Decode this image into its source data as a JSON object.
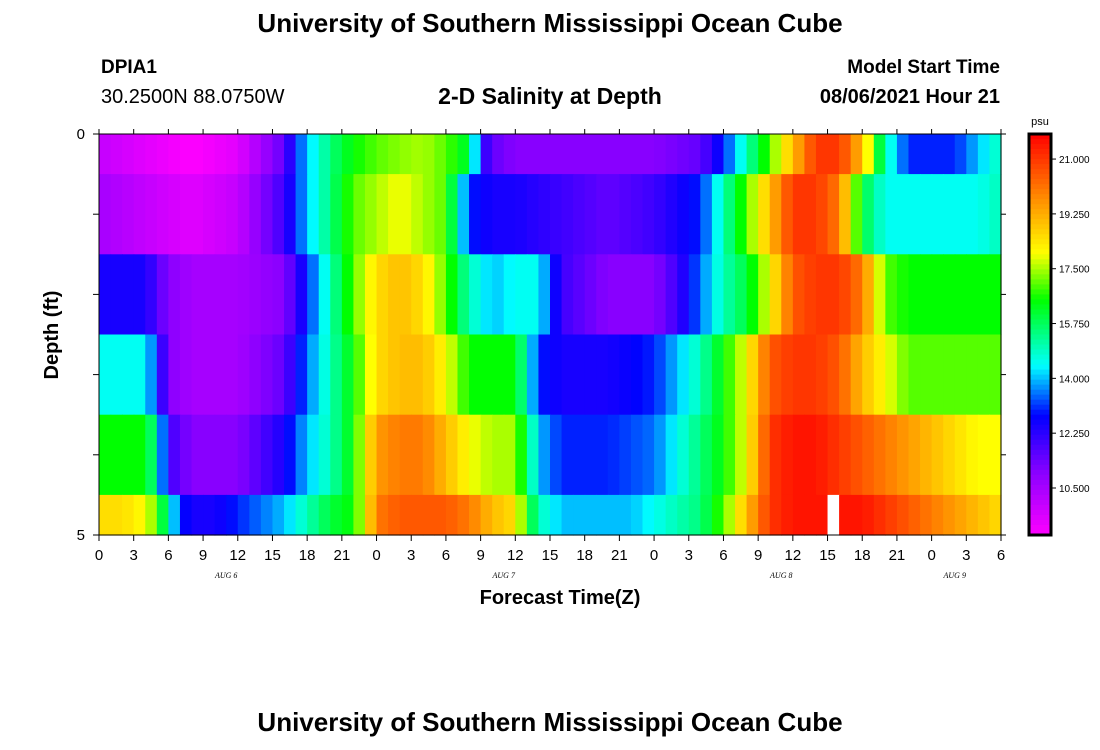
{
  "title_top": "University of Southern Mississippi Ocean Cube",
  "title_bottom": "University of Southern Mississippi Ocean Cube",
  "station": {
    "id": "DPIA1",
    "coords": "30.2500N  88.0750W"
  },
  "model": {
    "label": "Model Start Time",
    "value": "08/06/2021 Hour 21"
  },
  "chart_data": {
    "type": "heatmap",
    "title": "2-D Salinity at Depth",
    "xlabel": "Forecast Time(Z)",
    "ylabel": "Depth (ft)",
    "y_tick_labels": [
      "0",
      "5"
    ],
    "ylim": [
      0,
      5
    ],
    "x_tick_labels": [
      "0",
      "3",
      "6",
      "9",
      "12",
      "15",
      "18",
      "21",
      "0",
      "3",
      "6",
      "9",
      "12",
      "15",
      "18",
      "21",
      "0",
      "3",
      "6",
      "9",
      "12",
      "15",
      "18",
      "21",
      "0",
      "3",
      "6"
    ],
    "xlim_hours": [
      0,
      78
    ],
    "date_labels": [
      {
        "text": "AUG  6",
        "hour": 11
      },
      {
        "text": "AUG  7",
        "hour": 35
      },
      {
        "text": "AUG  8",
        "hour": 59
      },
      {
        "text": "AUG  9",
        "hour": 74
      }
    ],
    "colorbar": {
      "unit": "psu",
      "min": 9.0,
      "max": 21.8,
      "tick_values": [
        21.0,
        19.25,
        17.5,
        15.75,
        14.0,
        12.25,
        10.5
      ],
      "tick_labels": [
        "21.000",
        "19.250",
        "17.500",
        "15.750",
        "14.000",
        "12.250",
        "10.500"
      ],
      "stops": [
        {
          "v": 9.0,
          "c": "#ff00ff"
        },
        {
          "v": 11.0,
          "c": "#8800ff"
        },
        {
          "v": 12.8,
          "c": "#0000ff"
        },
        {
          "v": 14.4,
          "c": "#00ffff"
        },
        {
          "v": 16.5,
          "c": "#00ff00"
        },
        {
          "v": 18.0,
          "c": "#ffff00"
        },
        {
          "v": 19.8,
          "c": "#ff8800"
        },
        {
          "v": 21.8,
          "c": "#ff0000"
        }
      ]
    },
    "missing_hour": 63,
    "layers": [
      {
        "depth_range": [
          0,
          0.5
        ],
        "hours": [
          0,
          4,
          8,
          12,
          16,
          17,
          18,
          20,
          22,
          24,
          26,
          28,
          30,
          32,
          33,
          34,
          36,
          40,
          44,
          48,
          52,
          54,
          56,
          58,
          60,
          62,
          64,
          66,
          68,
          70,
          72,
          74,
          76,
          78
        ],
        "values": [
          10,
          9.5,
          9,
          9.5,
          11.5,
          13,
          14,
          15.5,
          16.5,
          17,
          17.3,
          17.5,
          17,
          16,
          12.5,
          11.5,
          11,
          11,
          11,
          11,
          11.5,
          13,
          15,
          17,
          19,
          21,
          21,
          19,
          15,
          13,
          13,
          13,
          14,
          15
        ]
      },
      {
        "depth_range": [
          0.5,
          1.5
        ],
        "hours": [
          0,
          4,
          8,
          12,
          16,
          17,
          18,
          20,
          22,
          24,
          26,
          28,
          30,
          32,
          34,
          36,
          40,
          44,
          48,
          52,
          54,
          56,
          58,
          60,
          62,
          64,
          66,
          68,
          70,
          72,
          74,
          76,
          78
        ],
        "values": [
          10.5,
          10,
          9.5,
          10,
          12,
          13,
          14,
          15.5,
          17,
          17.5,
          18,
          17.5,
          17,
          13,
          12.5,
          12.5,
          12,
          11.5,
          12,
          13,
          15,
          17,
          19,
          21,
          21,
          20,
          16,
          14.5,
          14.5,
          14.5,
          14.5,
          14.5,
          15
        ]
      },
      {
        "depth_range": [
          1.5,
          2.5
        ],
        "hours": [
          0,
          2,
          4,
          6,
          8,
          12,
          16,
          18,
          20,
          22,
          24,
          26,
          28,
          30,
          32,
          34,
          36,
          38,
          40,
          44,
          48,
          50,
          52,
          54,
          56,
          58,
          60,
          62,
          64,
          66,
          68,
          70,
          72,
          74,
          76,
          78
        ],
        "values": [
          12.5,
          12.5,
          12.5,
          11,
          10.5,
          10.5,
          11,
          13,
          15,
          17,
          18.5,
          19,
          18.5,
          17,
          15,
          14,
          14.5,
          14.5,
          12,
          11,
          11,
          12,
          13.5,
          15,
          16,
          18,
          20.5,
          21,
          21,
          20,
          17,
          16.5,
          16.5,
          16.5,
          16.5,
          16.5
        ]
      },
      {
        "depth_range": [
          2.5,
          3.5
        ],
        "hours": [
          0,
          2,
          4,
          5,
          6,
          8,
          12,
          16,
          18,
          20,
          22,
          24,
          26,
          28,
          30,
          32,
          34,
          36,
          38,
          40,
          44,
          48,
          50,
          52,
          54,
          56,
          58,
          60,
          62,
          64,
          66,
          68,
          70,
          72,
          74,
          76,
          78
        ],
        "values": [
          14.5,
          14.5,
          14.5,
          13,
          11,
          10.5,
          10.5,
          11.5,
          13.5,
          15,
          16.5,
          18.5,
          19,
          19,
          18,
          16.5,
          16.5,
          16.5,
          13,
          12.5,
          12.5,
          13,
          14,
          15,
          16.5,
          18,
          20.5,
          21,
          21,
          20.5,
          19,
          18,
          17,
          17,
          17,
          17,
          17
        ]
      },
      {
        "depth_range": [
          3.5,
          4.5
        ],
        "hours": [
          0,
          2,
          4,
          5,
          6,
          8,
          12,
          16,
          18,
          20,
          22,
          24,
          26,
          28,
          30,
          32,
          34,
          36,
          38,
          40,
          44,
          48,
          50,
          52,
          54,
          56,
          58,
          60,
          62,
          64,
          66,
          68,
          70,
          72,
          74,
          76,
          78
        ],
        "values": [
          16.5,
          16.5,
          16.5,
          15,
          12,
          11,
          11,
          12.5,
          14,
          15,
          16.5,
          19.5,
          20,
          20,
          19,
          18,
          17.5,
          17.5,
          14,
          13,
          13,
          13.5,
          14.5,
          15.5,
          16.5,
          18,
          21,
          21.5,
          21.5,
          21,
          20.5,
          20,
          19.5,
          19,
          18.5,
          18,
          18
        ]
      },
      {
        "depth_range": [
          4.5,
          5.0
        ],
        "hours": [
          0,
          2,
          4,
          5,
          6,
          7,
          8,
          10,
          12,
          14,
          16,
          18,
          20,
          22,
          23,
          24,
          26,
          28,
          30,
          32,
          34,
          36,
          37,
          38,
          40,
          42,
          44,
          46,
          48,
          50,
          52,
          54,
          56,
          58,
          60,
          62,
          64,
          66,
          68,
          70,
          72,
          74,
          76,
          78
        ],
        "values": [
          18.5,
          18.5,
          18,
          17,
          15,
          13,
          12.5,
          12.5,
          13,
          13.5,
          14,
          15,
          16,
          16.5,
          18,
          20,
          20.5,
          20.5,
          20.5,
          20,
          19,
          18.5,
          16.5,
          15,
          14,
          14,
          14,
          14,
          14.5,
          15,
          15.5,
          17,
          19,
          21,
          21.5,
          21.5,
          21.5,
          21.5,
          21,
          20.5,
          20,
          19.5,
          19,
          18.5
        ]
      }
    ]
  }
}
